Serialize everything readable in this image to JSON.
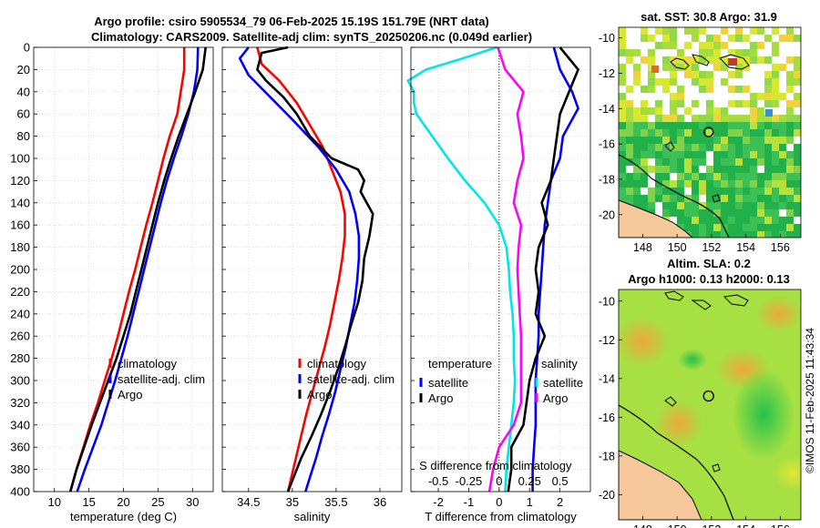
{
  "header": {
    "title_line1": "Argo profile: csiro 5905534_79 06-Feb-2025 15.19S 151.79E (NRT data)",
    "title_line2": "Climatology: CARS2009. Satellite-adj clim: synTS_20250206.nc (0.049d earlier)"
  },
  "footer": {
    "credit": "©IMOS 11-Feb-2025 11:43:34"
  },
  "colors": {
    "climatology": "#ff0000",
    "satellite": "#0000ff",
    "argo": "#000000",
    "salinity_diff": "#ff00ff",
    "temperature_diff": "#00e5e5",
    "land": "#f7c89b"
  },
  "chart_data": [
    {
      "id": "temperature",
      "type": "line",
      "xlabel": "temperature (deg C)",
      "ylabel": "",
      "xlim": [
        7,
        33
      ],
      "ylim": [
        400,
        0
      ],
      "xticks": [
        10,
        15,
        20,
        25,
        30
      ],
      "yticks": [
        0,
        20,
        40,
        60,
        80,
        100,
        120,
        140,
        160,
        180,
        200,
        220,
        240,
        260,
        280,
        300,
        320,
        340,
        360,
        380,
        400
      ],
      "legend": [
        "climatology",
        "satellite-adj. clim",
        "Argo"
      ],
      "series": [
        {
          "name": "climatology",
          "color": "#ff0000",
          "points": [
            [
              28.8,
              0
            ],
            [
              28.8,
              20
            ],
            [
              28.3,
              40
            ],
            [
              27.8,
              60
            ],
            [
              26.7,
              80
            ],
            [
              25.8,
              100
            ],
            [
              25.0,
              120
            ],
            [
              24.2,
              140
            ],
            [
              23.3,
              160
            ],
            [
              22.5,
              180
            ],
            [
              21.7,
              200
            ],
            [
              20.8,
              220
            ],
            [
              20.0,
              240
            ],
            [
              19.2,
              260
            ],
            [
              18.3,
              280
            ],
            [
              17.3,
              300
            ],
            [
              16.3,
              320
            ],
            [
              15.2,
              340
            ],
            [
              14.2,
              360
            ],
            [
              13.2,
              380
            ],
            [
              12.3,
              400
            ]
          ]
        },
        {
          "name": "satellite-adj. clim",
          "color": "#0000ff",
          "points": [
            [
              30.8,
              0
            ],
            [
              30.7,
              20
            ],
            [
              30.2,
              40
            ],
            [
              29.4,
              60
            ],
            [
              28.4,
              80
            ],
            [
              27.3,
              100
            ],
            [
              26.3,
              120
            ],
            [
              25.4,
              140
            ],
            [
              24.6,
              160
            ],
            [
              23.8,
              180
            ],
            [
              23.0,
              200
            ],
            [
              22.2,
              220
            ],
            [
              21.4,
              240
            ],
            [
              20.6,
              260
            ],
            [
              19.7,
              280
            ],
            [
              18.8,
              300
            ],
            [
              17.8,
              320
            ],
            [
              16.8,
              340
            ],
            [
              15.6,
              360
            ],
            [
              14.4,
              380
            ],
            [
              13.3,
              400
            ]
          ]
        },
        {
          "name": "Argo",
          "color": "#000000",
          "points": [
            [
              31.9,
              0
            ],
            [
              31.5,
              20
            ],
            [
              30.4,
              40
            ],
            [
              29.2,
              60
            ],
            [
              28.0,
              80
            ],
            [
              26.9,
              100
            ],
            [
              25.9,
              120
            ],
            [
              25.0,
              140
            ],
            [
              24.2,
              160
            ],
            [
              23.4,
              180
            ],
            [
              22.6,
              200
            ],
            [
              21.8,
              220
            ],
            [
              21.0,
              240
            ],
            [
              20.0,
              260
            ],
            [
              19.0,
              280
            ],
            [
              17.8,
              300
            ],
            [
              16.6,
              320
            ],
            [
              15.4,
              340
            ],
            [
              14.3,
              360
            ],
            [
              13.2,
              380
            ],
            [
              12.3,
              400
            ]
          ]
        }
      ]
    },
    {
      "id": "salinity",
      "type": "line",
      "xlabel": "salinity",
      "ylabel": "",
      "xlim": [
        34.2,
        36.25
      ],
      "ylim": [
        400,
        0
      ],
      "xticks": [
        34.5,
        35,
        35.5,
        36
      ],
      "xticklabels": [
        "34.5",
        "35",
        "35.5",
        "36"
      ],
      "legend": [
        "climatology",
        "satellite-adj. clim",
        "Argo"
      ],
      "series": [
        {
          "name": "climatology",
          "color": "#ff0000",
          "points": [
            [
              34.6,
              0
            ],
            [
              34.65,
              15
            ],
            [
              34.85,
              30
            ],
            [
              35.05,
              50
            ],
            [
              35.2,
              70
            ],
            [
              35.35,
              90
            ],
            [
              35.45,
              110
            ],
            [
              35.55,
              130
            ],
            [
              35.6,
              150
            ],
            [
              35.6,
              170
            ],
            [
              35.57,
              190
            ],
            [
              35.53,
              210
            ],
            [
              35.48,
              230
            ],
            [
              35.43,
              250
            ],
            [
              35.37,
              270
            ],
            [
              35.3,
              290
            ],
            [
              35.23,
              310
            ],
            [
              35.16,
              330
            ],
            [
              35.1,
              350
            ],
            [
              35.04,
              370
            ],
            [
              34.98,
              390
            ],
            [
              34.95,
              400
            ]
          ]
        },
        {
          "name": "satellite-adj. clim",
          "color": "#0000ff",
          "points": [
            [
              34.5,
              0
            ],
            [
              34.4,
              10
            ],
            [
              34.5,
              25
            ],
            [
              34.75,
              45
            ],
            [
              35.0,
              65
            ],
            [
              35.3,
              90
            ],
            [
              35.5,
              110
            ],
            [
              35.65,
              130
            ],
            [
              35.72,
              150
            ],
            [
              35.76,
              170
            ],
            [
              35.76,
              190
            ],
            [
              35.74,
              210
            ],
            [
              35.71,
              230
            ],
            [
              35.66,
              250
            ],
            [
              35.61,
              270
            ],
            [
              35.55,
              290
            ],
            [
              35.49,
              310
            ],
            [
              35.42,
              330
            ],
            [
              35.34,
              350
            ],
            [
              35.27,
              370
            ],
            [
              35.19,
              390
            ],
            [
              35.15,
              400
            ]
          ]
        },
        {
          "name": "Argo",
          "color": "#000000",
          "points": [
            [
              34.95,
              0
            ],
            [
              34.65,
              5
            ],
            [
              34.6,
              20
            ],
            [
              34.7,
              30
            ],
            [
              34.9,
              45
            ],
            [
              35.05,
              60
            ],
            [
              35.2,
              80
            ],
            [
              35.45,
              100
            ],
            [
              35.75,
              110
            ],
            [
              35.82,
              120
            ],
            [
              35.78,
              130
            ],
            [
              35.92,
              150
            ],
            [
              35.88,
              170
            ],
            [
              35.82,
              190
            ],
            [
              35.8,
              210
            ],
            [
              35.75,
              230
            ],
            [
              35.67,
              250
            ],
            [
              35.6,
              270
            ],
            [
              35.52,
              290
            ],
            [
              35.43,
              310
            ],
            [
              35.33,
              330
            ],
            [
              35.22,
              350
            ],
            [
              35.1,
              370
            ],
            [
              35.0,
              390
            ],
            [
              34.95,
              400
            ]
          ]
        }
      ]
    },
    {
      "id": "difference",
      "type": "line",
      "xlabel": "T difference from climatology",
      "xlabel_top": "S difference from climatology",
      "xlim": [
        -2.9,
        3.0
      ],
      "ylim": [
        400,
        0
      ],
      "xticks": [
        -2,
        -1,
        0,
        1,
        2
      ],
      "xticklabels": [
        "-2",
        "-1",
        "0",
        "1",
        "2"
      ],
      "s_xticks": [
        -0.5,
        -0.25,
        0,
        0.25,
        0.5
      ],
      "s_xticklabels": [
        "-0.5",
        "-0.25",
        "0",
        "0.25",
        "0.5"
      ],
      "legend": {
        "left_header": "temperature",
        "right_header": "salinity",
        "left": [
          "satellite",
          "Argo"
        ],
        "right": [
          "satellite",
          "Argo"
        ]
      },
      "series": [
        {
          "name": "T satellite",
          "color": "#0000ff",
          "points": [
            [
              1.8,
              0
            ],
            [
              2.0,
              20
            ],
            [
              2.4,
              40
            ],
            [
              2.6,
              55
            ],
            [
              2.1,
              80
            ],
            [
              2.0,
              100
            ],
            [
              1.7,
              120
            ],
            [
              1.6,
              140
            ],
            [
              1.5,
              160
            ],
            [
              1.45,
              180
            ],
            [
              1.4,
              200
            ],
            [
              1.35,
              220
            ],
            [
              1.3,
              240
            ],
            [
              1.3,
              260
            ],
            [
              1.25,
              280
            ],
            [
              1.2,
              300
            ],
            [
              1.2,
              320
            ],
            [
              1.2,
              340
            ],
            [
              1.15,
              360
            ],
            [
              1.1,
              380
            ],
            [
              1.1,
              400
            ]
          ]
        },
        {
          "name": "T Argo",
          "color": "#000000",
          "points": [
            [
              2.0,
              0
            ],
            [
              2.6,
              20
            ],
            [
              2.3,
              40
            ],
            [
              2.0,
              60
            ],
            [
              1.9,
              80
            ],
            [
              1.8,
              100
            ],
            [
              1.7,
              120
            ],
            [
              1.4,
              140
            ],
            [
              1.6,
              160
            ],
            [
              1.3,
              180
            ],
            [
              1.2,
              200
            ],
            [
              1.3,
              220
            ],
            [
              1.2,
              240
            ],
            [
              1.5,
              260
            ],
            [
              1.2,
              280
            ],
            [
              1.0,
              300
            ],
            [
              0.9,
              320
            ],
            [
              0.8,
              340
            ],
            [
              0.4,
              360
            ],
            [
              0.4,
              380
            ],
            [
              0.3,
              400
            ]
          ]
        },
        {
          "name": "S satellite",
          "color": "#00e5e5",
          "points": [
            [
              -0.02,
              0
            ],
            [
              -0.3,
              10
            ],
            [
              -0.6,
              20
            ],
            [
              -0.75,
              30
            ],
            [
              -0.7,
              40
            ],
            [
              -0.7,
              50
            ],
            [
              -0.68,
              60
            ],
            [
              -0.55,
              80
            ],
            [
              -0.42,
              100
            ],
            [
              -0.28,
              120
            ],
            [
              -0.12,
              140
            ],
            [
              0.0,
              160
            ],
            [
              0.06,
              180
            ],
            [
              0.08,
              200
            ],
            [
              0.09,
              220
            ],
            [
              0.11,
              240
            ],
            [
              0.12,
              260
            ],
            [
              0.12,
              280
            ],
            [
              0.13,
              300
            ],
            [
              0.12,
              320
            ],
            [
              0.1,
              340
            ],
            [
              0.08,
              360
            ],
            [
              0.06,
              380
            ],
            [
              0.05,
              400
            ]
          ]
        },
        {
          "name": "S Argo",
          "color": "#ff00ff",
          "points": [
            [
              -0.01,
              0
            ],
            [
              0.05,
              20
            ],
            [
              0.2,
              40
            ],
            [
              0.15,
              60
            ],
            [
              0.18,
              80
            ],
            [
              0.2,
              100
            ],
            [
              0.15,
              120
            ],
            [
              0.12,
              140
            ],
            [
              0.18,
              160
            ],
            [
              0.16,
              180
            ],
            [
              0.15,
              200
            ],
            [
              0.16,
              220
            ],
            [
              0.17,
              240
            ],
            [
              0.18,
              260
            ],
            [
              0.18,
              280
            ],
            [
              0.18,
              300
            ],
            [
              0.18,
              320
            ],
            [
              0.12,
              340
            ],
            [
              0.0,
              360
            ],
            [
              -0.05,
              380
            ],
            [
              -0.08,
              400
            ]
          ]
        }
      ]
    },
    {
      "id": "sst_map",
      "type": "heatmap",
      "title": "sat. SST: 30.8 Argo: 31.9",
      "xlim": [
        146.6,
        157.2
      ],
      "ylim": [
        -21.3,
        -9.4
      ],
      "xticks": [
        148,
        150,
        152,
        154,
        156
      ],
      "yticks": [
        -10,
        -12,
        -14,
        -16,
        -18,
        -20
      ],
      "profile_location": {
        "lon": 151.79,
        "lat": -15.19
      }
    },
    {
      "id": "sla_map",
      "type": "heatmap",
      "title_line1": "Altim. SLA: 0.2",
      "title_line2": "Argo h1000: 0.13 h2000: 0.13",
      "xlim": [
        146.6,
        157.2
      ],
      "ylim": [
        -21.3,
        -9.4
      ],
      "xticks": [
        148,
        150,
        152,
        154,
        156
      ],
      "yticks": [
        -10,
        -12,
        -14,
        -16,
        -18,
        -20
      ],
      "profile_location": {
        "lon": 151.79,
        "lat": -15.19
      }
    }
  ]
}
